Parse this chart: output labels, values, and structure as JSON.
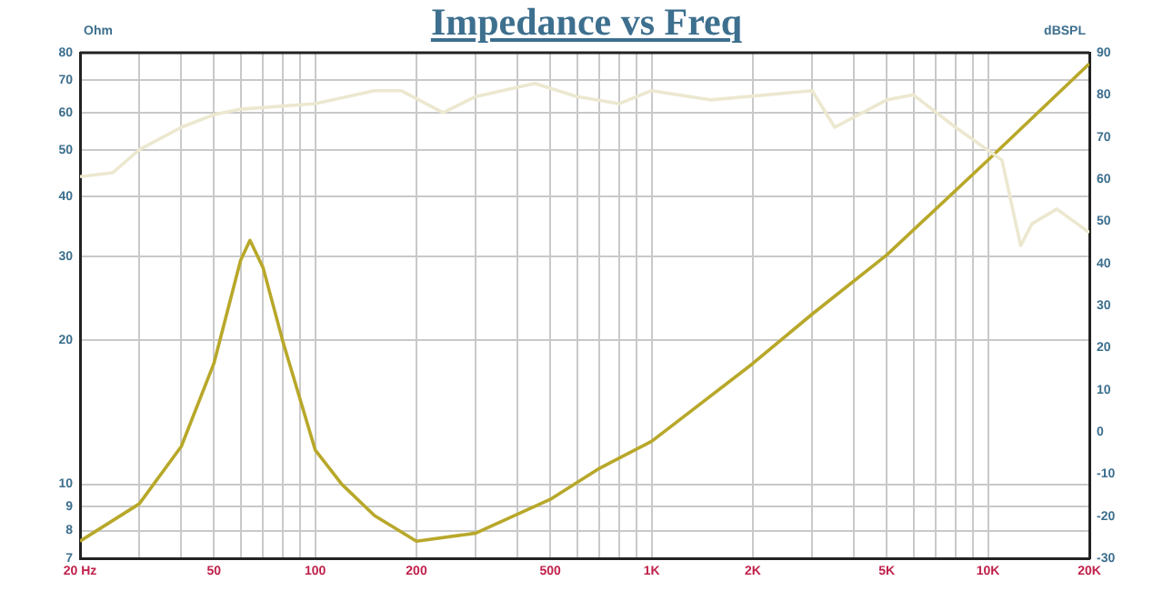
{
  "chart_data": {
    "type": "line",
    "title": "Impedance vs Freq",
    "ylabel": "Ohm",
    "y2label": "dBSPL",
    "log": "xy",
    "grid": true,
    "legend": false,
    "marker": "none",
    "line_style": "solid",
    "xlim": [
      20,
      20000
    ],
    "xticks": [
      {
        "value": 20,
        "label": "20 Hz"
      },
      {
        "value": 30,
        "label": null
      },
      {
        "value": 40,
        "label": null
      },
      50,
      {
        "value": 60,
        "label": null
      },
      {
        "value": 70,
        "label": null
      },
      {
        "value": 80,
        "label": null
      },
      {
        "value": 90,
        "label": null
      },
      100,
      200,
      {
        "value": 300,
        "label": null
      },
      {
        "value": 400,
        "label": null
      },
      500,
      {
        "value": 600,
        "label": null
      },
      {
        "value": 700,
        "label": null
      },
      {
        "value": 800,
        "label": null
      },
      {
        "value": 900,
        "label": null
      },
      {
        "value": 1000,
        "label": "1K"
      },
      {
        "value": 2000,
        "label": "2K"
      },
      {
        "value": 3000,
        "label": null
      },
      {
        "value": 4000,
        "label": null
      },
      {
        "value": 5000,
        "label": "5K"
      },
      {
        "value": 6000,
        "label": null
      },
      {
        "value": 7000,
        "label": null
      },
      {
        "value": 8000,
        "label": null
      },
      {
        "value": 9000,
        "label": null
      },
      {
        "value": 10000,
        "label": "10K"
      },
      {
        "value": 20000,
        "label": "20K"
      }
    ],
    "ylim": [
      7,
      80
    ],
    "yticks": [
      7,
      8,
      9,
      10,
      20,
      30,
      40,
      50,
      60,
      70,
      80
    ],
    "y2lim": [
      -30,
      90
    ],
    "y2ticks": [
      -30,
      -20,
      -10,
      0,
      10,
      20,
      30,
      40,
      50,
      60,
      70,
      80,
      90
    ],
    "series": [
      {
        "color": "#ece8d0",
        "axis": "y2",
        "x": [
          20,
          25,
          30,
          40,
          50,
          60,
          100,
          150,
          180,
          240,
          300,
          450,
          600,
          800,
          1000,
          1500,
          3000,
          3500,
          5000,
          6000,
          8000,
          11000,
          12500,
          13500,
          16000,
          20000
        ],
        "values": [
          60.6,
          61.5,
          67,
          72.3,
          75.3,
          76.6,
          77.9,
          81,
          81,
          75.8,
          79.6,
          82.7,
          79.6,
          77.9,
          81,
          78.8,
          81,
          72.3,
          78.8,
          80,
          72.3,
          64.5,
          44.2,
          49.4,
          52.9,
          47.3
        ]
      },
      {
        "color": "#b8a82a",
        "x": [
          20,
          30,
          40,
          50,
          60,
          64,
          70,
          80,
          100,
          120,
          150,
          200,
          300,
          500,
          700,
          1000,
          2000,
          3000,
          5000,
          10000,
          20000
        ],
        "values": [
          7.6,
          9.1,
          12,
          17.9,
          29.4,
          32.4,
          28.4,
          20,
          11.8,
          10,
          8.6,
          7.6,
          7.9,
          9.3,
          10.8,
          12.3,
          17.9,
          22.7,
          30.2,
          47.7,
          75.9
        ]
      }
    ]
  }
}
